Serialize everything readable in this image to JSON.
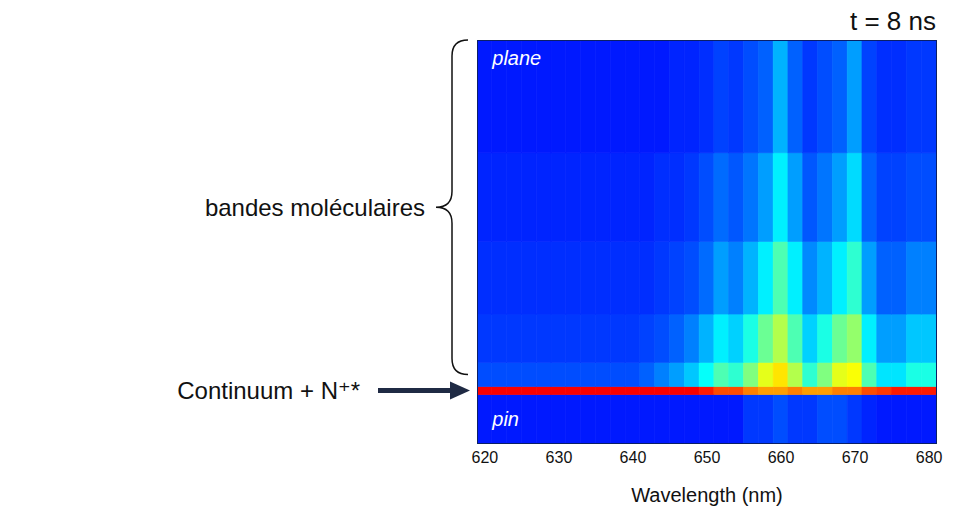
{
  "chart_data": {
    "type": "heatmap",
    "title": "t = 8 ns",
    "x_label": "Wavelength (nm)",
    "xlim": [
      619,
      681
    ],
    "xticks": [
      620,
      630,
      640,
      650,
      660,
      670,
      680
    ],
    "ylim": [
      0,
      1
    ],
    "tick_labels": "x",
    "x_bins": [
      619,
      621,
      623,
      625,
      627,
      629,
      631,
      633,
      635,
      637,
      639,
      641,
      643,
      645,
      647,
      649,
      651,
      653,
      655,
      657,
      659,
      661,
      663,
      665,
      667,
      669,
      671,
      673,
      675,
      677,
      679,
      681
    ],
    "y_bins": [
      0,
      0.12,
      0.14,
      0.2,
      0.32,
      0.5,
      0.72,
      1
    ],
    "zlim": [
      0,
      1
    ],
    "values": [
      [
        0.15,
        0.15,
        0.15,
        0.15,
        0.15,
        0.15,
        0.15,
        0.15,
        0.15,
        0.15,
        0.15,
        0.15,
        0.15,
        0.15,
        0.15,
        0.15,
        0.15,
        0.15,
        0.18,
        0.18,
        0.2,
        0.18,
        0.18,
        0.2,
        0.2,
        0.18,
        0.16,
        0.15,
        0.15,
        0.15,
        0.15
      ],
      [
        0.88,
        0.88,
        0.88,
        0.88,
        0.88,
        0.88,
        0.88,
        0.88,
        0.88,
        0.88,
        0.88,
        0.88,
        0.88,
        0.88,
        0.88,
        0.85,
        0.8,
        0.8,
        0.75,
        0.72,
        0.72,
        0.75,
        0.72,
        0.72,
        0.75,
        0.75,
        0.8,
        0.82,
        0.85,
        0.85,
        0.85
      ],
      [
        0.2,
        0.2,
        0.2,
        0.2,
        0.2,
        0.2,
        0.2,
        0.2,
        0.2,
        0.2,
        0.2,
        0.22,
        0.25,
        0.28,
        0.32,
        0.38,
        0.45,
        0.42,
        0.5,
        0.6,
        0.65,
        0.55,
        0.42,
        0.5,
        0.6,
        0.62,
        0.45,
        0.35,
        0.35,
        0.4,
        0.4
      ],
      [
        0.18,
        0.18,
        0.18,
        0.18,
        0.18,
        0.18,
        0.18,
        0.18,
        0.18,
        0.18,
        0.18,
        0.19,
        0.2,
        0.22,
        0.25,
        0.3,
        0.36,
        0.33,
        0.4,
        0.48,
        0.55,
        0.45,
        0.33,
        0.4,
        0.48,
        0.52,
        0.36,
        0.28,
        0.28,
        0.32,
        0.32
      ],
      [
        0.17,
        0.17,
        0.17,
        0.17,
        0.17,
        0.17,
        0.17,
        0.17,
        0.17,
        0.17,
        0.17,
        0.17,
        0.18,
        0.19,
        0.2,
        0.23,
        0.28,
        0.25,
        0.3,
        0.36,
        0.45,
        0.36,
        0.26,
        0.3,
        0.36,
        0.42,
        0.28,
        0.22,
        0.22,
        0.25,
        0.25
      ],
      [
        0.16,
        0.16,
        0.16,
        0.16,
        0.16,
        0.16,
        0.16,
        0.16,
        0.16,
        0.16,
        0.16,
        0.16,
        0.17,
        0.17,
        0.18,
        0.2,
        0.23,
        0.21,
        0.24,
        0.28,
        0.36,
        0.28,
        0.21,
        0.24,
        0.28,
        0.34,
        0.22,
        0.19,
        0.19,
        0.2,
        0.2
      ],
      [
        0.15,
        0.15,
        0.15,
        0.15,
        0.15,
        0.15,
        0.15,
        0.15,
        0.15,
        0.15,
        0.15,
        0.15,
        0.15,
        0.16,
        0.16,
        0.17,
        0.19,
        0.18,
        0.2,
        0.22,
        0.3,
        0.22,
        0.18,
        0.2,
        0.22,
        0.28,
        0.19,
        0.17,
        0.17,
        0.18,
        0.18
      ]
    ],
    "annotations": [
      {
        "text": "plane",
        "x": 621,
        "y": 0.955
      },
      {
        "text": "pin",
        "x": 621,
        "y": 0.06
      }
    ],
    "brace": {
      "text": "bandes moléculaires",
      "y": [
        0.17,
        1
      ]
    },
    "arrow": {
      "text": "Continuum + N⁺*",
      "y": 0.13
    }
  }
}
